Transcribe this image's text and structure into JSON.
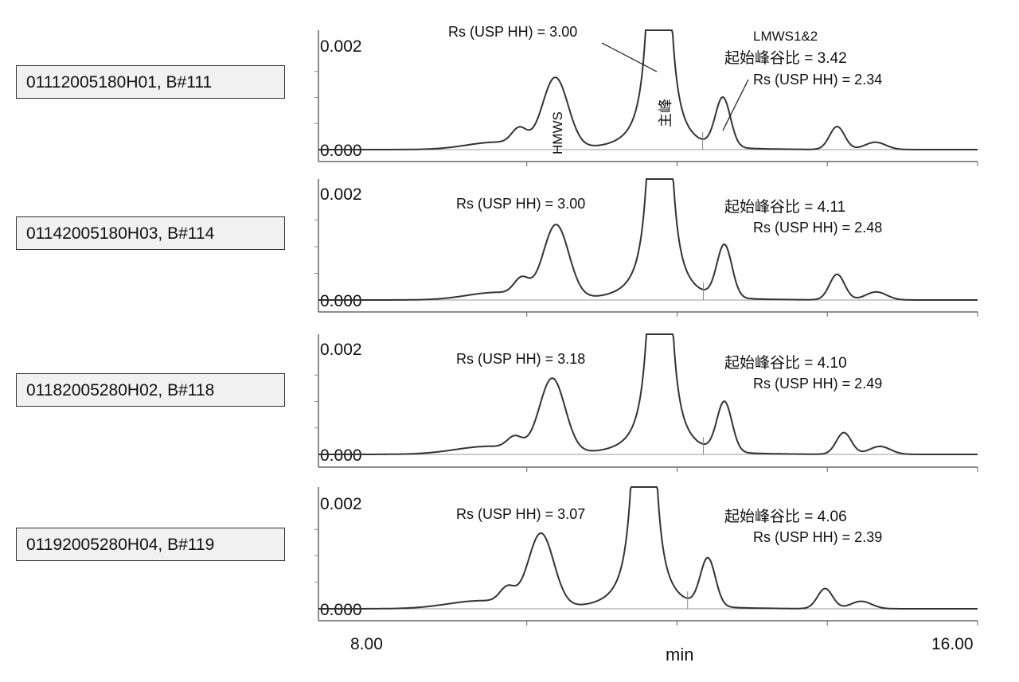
{
  "chart_data": {
    "type": "line",
    "title": "",
    "xlabel": "min",
    "ylabel": "",
    "xlim": [
      8.0,
      16.0
    ],
    "ylim": [
      0.0,
      0.0023
    ],
    "x_tick_labels": [
      "8.00",
      "16.00"
    ],
    "y_tick_labels": [
      "0.000",
      "0.002"
    ],
    "panels": [
      {
        "sample": "01112005180H01, B#111",
        "main_peak_label": "主峰",
        "hmws_label": "HMWS",
        "rs_hmws": "Rs (USP HH) = 3.00",
        "lmws_label": "LMWS1&2",
        "pv_ratio": "起始峰谷比 = 3.42",
        "rs_lmws": "Rs (USP HH) = 2.34",
        "main_peak_time": 11.76,
        "peaks": [
          {
            "t": 9.6,
            "h": 0.00014,
            "w": 0.4
          },
          {
            "t": 9.9,
            "h": 0.0003,
            "w": 0.1
          },
          {
            "t": 10.38,
            "h": 0.00135,
            "w": 0.17
          },
          {
            "t": 12.61,
            "h": 0.00094,
            "w": 0.1
          },
          {
            "t": 14.13,
            "h": 0.00044,
            "w": 0.1
          },
          {
            "t": 14.64,
            "h": 0.00014,
            "w": 0.14
          }
        ]
      },
      {
        "sample": "01142005180H03, B#114",
        "rs_hmws": "Rs (USP HH) = 3.00",
        "pv_ratio": "起始峰谷比 = 4.11",
        "rs_lmws": "Rs (USP HH) = 2.48",
        "main_peak_time": 11.77,
        "peaks": [
          {
            "t": 9.6,
            "h": 0.00014,
            "w": 0.4
          },
          {
            "t": 9.93,
            "h": 0.0003,
            "w": 0.1
          },
          {
            "t": 10.39,
            "h": 0.00138,
            "w": 0.17
          },
          {
            "t": 12.63,
            "h": 0.00098,
            "w": 0.1
          },
          {
            "t": 14.13,
            "h": 0.00048,
            "w": 0.1
          },
          {
            "t": 14.65,
            "h": 0.00015,
            "w": 0.14
          }
        ]
      },
      {
        "sample": "01182005280H02, B#118",
        "rs_hmws": "Rs (USP HH) = 3.18",
        "pv_ratio": "起始峰谷比 = 4.10",
        "rs_lmws": "Rs (USP HH) = 2.49",
        "main_peak_time": 11.77,
        "peaks": [
          {
            "t": 9.5,
            "h": 0.00015,
            "w": 0.45
          },
          {
            "t": 9.84,
            "h": 0.00022,
            "w": 0.1
          },
          {
            "t": 10.34,
            "h": 0.0014,
            "w": 0.17
          },
          {
            "t": 12.63,
            "h": 0.00094,
            "w": 0.1
          },
          {
            "t": 14.22,
            "h": 0.00041,
            "w": 0.1
          },
          {
            "t": 14.7,
            "h": 0.00015,
            "w": 0.14
          }
        ]
      },
      {
        "sample": "01192005280H04, B#119",
        "rs_hmws": "Rs (USP HH) = 3.07",
        "pv_ratio": "起始峰谷比 = 4.06",
        "rs_lmws": "Rs (USP HH) = 2.39",
        "main_peak_time": 11.56,
        "peaks": [
          {
            "t": 9.4,
            "h": 0.00015,
            "w": 0.45
          },
          {
            "t": 9.74,
            "h": 0.00028,
            "w": 0.1
          },
          {
            "t": 10.19,
            "h": 0.00138,
            "w": 0.17
          },
          {
            "t": 12.41,
            "h": 0.0009,
            "w": 0.1
          },
          {
            "t": 13.97,
            "h": 0.00038,
            "w": 0.1
          },
          {
            "t": 14.45,
            "h": 0.00014,
            "w": 0.14
          }
        ]
      }
    ]
  }
}
